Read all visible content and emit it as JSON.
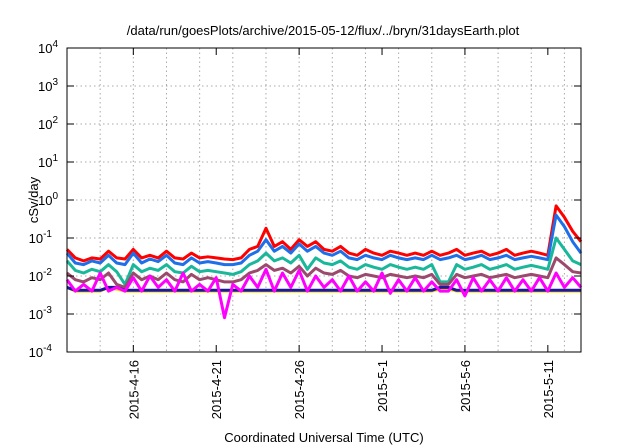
{
  "chart_data": {
    "type": "line",
    "title": "/data/run/goesPlots/archive/2015-05-12/flux/../bryn/31daysEarth.plot",
    "xlabel": "Coordinated Universal Time (UTC)",
    "ylabel": "cSv/day",
    "yscale": "log",
    "ylim": [
      0.0001,
      10000
    ],
    "xlim_days": [
      0,
      31
    ],
    "x_start_date": "2015-4-12",
    "grid": true,
    "legend": "none",
    "x_ticks": [
      {
        "label": "2015-4-16",
        "day": 4
      },
      {
        "label": "2015-4-21",
        "day": 9
      },
      {
        "label": "2015-4-26",
        "day": 14
      },
      {
        "label": "2015-5-1",
        "day": 19
      },
      {
        "label": "2015-5-6",
        "day": 24
      },
      {
        "label": "2015-5-11",
        "day": 29
      }
    ],
    "y_ticks": [
      {
        "base": "10",
        "exp": "-4",
        "value": 0.0001
      },
      {
        "base": "10",
        "exp": "-3",
        "value": 0.001
      },
      {
        "base": "10",
        "exp": "-2",
        "value": 0.01
      },
      {
        "base": "10",
        "exp": "-1",
        "value": 0.1
      },
      {
        "base": "10",
        "exp": "0",
        "value": 1
      },
      {
        "base": "10",
        "exp": "1",
        "value": 10
      },
      {
        "base": "10",
        "exp": "2",
        "value": 100
      },
      {
        "base": "10",
        "exp": "3",
        "value": 1000
      },
      {
        "base": "10",
        "exp": "4",
        "value": 10000
      }
    ],
    "x_days": [
      0,
      0.5,
      1,
      1.5,
      2,
      2.5,
      3,
      3.5,
      4,
      4.5,
      5,
      5.5,
      6,
      6.5,
      7,
      7.5,
      8,
      8.5,
      9,
      9.5,
      10,
      10.5,
      11,
      11.5,
      12,
      12.5,
      13,
      13.5,
      14,
      14.5,
      15,
      15.5,
      16,
      16.5,
      17,
      17.5,
      18,
      18.5,
      19,
      19.5,
      20,
      20.5,
      21,
      21.5,
      22,
      22.5,
      23,
      23.5,
      24,
      24.5,
      25,
      25.5,
      26,
      26.5,
      27,
      27.5,
      28,
      28.5,
      29,
      29.5,
      30,
      30.5,
      31
    ],
    "series": [
      {
        "name": "red",
        "color": "#ff0000",
        "values": [
          0.05,
          0.03,
          0.025,
          0.03,
          0.028,
          0.045,
          0.03,
          0.028,
          0.05,
          0.03,
          0.035,
          0.03,
          0.045,
          0.03,
          0.028,
          0.04,
          0.03,
          0.032,
          0.03,
          0.028,
          0.027,
          0.03,
          0.05,
          0.06,
          0.18,
          0.06,
          0.08,
          0.05,
          0.09,
          0.06,
          0.08,
          0.05,
          0.045,
          0.06,
          0.04,
          0.035,
          0.05,
          0.04,
          0.035,
          0.045,
          0.04,
          0.035,
          0.04,
          0.035,
          0.045,
          0.035,
          0.04,
          0.05,
          0.035,
          0.04,
          0.045,
          0.035,
          0.04,
          0.05,
          0.035,
          0.04,
          0.045,
          0.04,
          0.035,
          0.7,
          0.35,
          0.15,
          0.08
        ]
      },
      {
        "name": "blue",
        "color": "#1e6fe8",
        "values": [
          0.04,
          0.022,
          0.02,
          0.025,
          0.022,
          0.035,
          0.022,
          0.02,
          0.04,
          0.022,
          0.028,
          0.024,
          0.035,
          0.022,
          0.02,
          0.03,
          0.022,
          0.024,
          0.022,
          0.02,
          0.02,
          0.022,
          0.035,
          0.045,
          0.09,
          0.045,
          0.06,
          0.04,
          0.07,
          0.045,
          0.06,
          0.04,
          0.035,
          0.045,
          0.03,
          0.027,
          0.035,
          0.03,
          0.027,
          0.035,
          0.03,
          0.027,
          0.03,
          0.027,
          0.035,
          0.027,
          0.03,
          0.035,
          0.027,
          0.03,
          0.035,
          0.027,
          0.03,
          0.035,
          0.027,
          0.03,
          0.033,
          0.03,
          0.027,
          0.4,
          0.2,
          0.08,
          0.04
        ]
      },
      {
        "name": "teal",
        "color": "#1ab89a",
        "values": [
          0.025,
          0.014,
          0.012,
          0.015,
          0.013,
          0.02,
          0.013,
          0.006,
          0.02,
          0.013,
          0.016,
          0.014,
          0.02,
          0.013,
          0.012,
          0.018,
          0.013,
          0.014,
          0.013,
          0.012,
          0.011,
          0.013,
          0.02,
          0.025,
          0.04,
          0.025,
          0.03,
          0.022,
          0.035,
          0.015,
          0.03,
          0.022,
          0.02,
          0.025,
          0.017,
          0.015,
          0.02,
          0.017,
          0.015,
          0.02,
          0.017,
          0.015,
          0.017,
          0.015,
          0.02,
          0.007,
          0.007,
          0.02,
          0.015,
          0.017,
          0.02,
          0.015,
          0.017,
          0.02,
          0.015,
          0.017,
          0.019,
          0.017,
          0.015,
          0.1,
          0.05,
          0.025,
          0.02
        ]
      },
      {
        "name": "brown",
        "color": "#9b4a6e",
        "values": [
          0.012,
          0.008,
          0.007,
          0.009,
          0.008,
          0.012,
          0.006,
          0.005,
          0.012,
          0.008,
          0.01,
          0.008,
          0.012,
          0.008,
          0.007,
          0.011,
          0.008,
          0.009,
          0.008,
          0.007,
          0.007,
          0.008,
          0.012,
          0.014,
          0.02,
          0.014,
          0.016,
          0.012,
          0.018,
          0.01,
          0.016,
          0.012,
          0.011,
          0.014,
          0.01,
          0.009,
          0.011,
          0.01,
          0.009,
          0.011,
          0.01,
          0.009,
          0.01,
          0.009,
          0.011,
          0.006,
          0.006,
          0.011,
          0.009,
          0.01,
          0.011,
          0.009,
          0.01,
          0.011,
          0.009,
          0.01,
          0.011,
          0.01,
          0.009,
          0.03,
          0.02,
          0.013,
          0.012
        ]
      },
      {
        "name": "yellow",
        "color": "#ffd700",
        "values": [
          0.005,
          0.004,
          0.004,
          0.004,
          0.004,
          0.005,
          0.0045,
          0.004,
          0.004,
          0.004,
          0.004,
          0.004,
          0.004,
          0.004,
          0.004,
          0.004,
          0.004,
          0.004,
          0.004,
          0.004,
          0.004,
          0.004,
          0.004,
          0.004,
          0.004,
          0.004,
          0.004,
          0.004,
          0.004,
          0.004,
          0.004,
          0.004,
          0.004,
          0.004,
          0.004,
          0.004,
          0.004,
          0.004,
          0.004,
          0.004,
          0.004,
          0.004,
          0.004,
          0.004,
          0.004,
          0.0045,
          0.0045,
          0.004,
          0.004,
          0.004,
          0.004,
          0.004,
          0.004,
          0.004,
          0.004,
          0.004,
          0.004,
          0.004,
          0.004,
          0.004,
          0.004,
          0.004,
          0.004
        ]
      },
      {
        "name": "navy",
        "color": "#1a1a9a",
        "values": [
          0.005,
          0.0042,
          0.0042,
          0.0042,
          0.0042,
          0.005,
          0.005,
          0.0042,
          0.0042,
          0.0042,
          0.0042,
          0.0042,
          0.0042,
          0.0042,
          0.0042,
          0.0042,
          0.0042,
          0.0042,
          0.0042,
          0.0042,
          0.0042,
          0.0042,
          0.0042,
          0.0042,
          0.0042,
          0.0042,
          0.0042,
          0.0042,
          0.0042,
          0.0042,
          0.0042,
          0.0042,
          0.0042,
          0.0042,
          0.0042,
          0.0042,
          0.0042,
          0.0042,
          0.0042,
          0.0042,
          0.0042,
          0.0042,
          0.0042,
          0.0042,
          0.0042,
          0.005,
          0.005,
          0.0042,
          0.0042,
          0.0042,
          0.0042,
          0.0042,
          0.0042,
          0.0042,
          0.0042,
          0.0042,
          0.0042,
          0.0042,
          0.0042,
          0.0042,
          0.0042,
          0.0042,
          0.0042
        ]
      },
      {
        "name": "magenta",
        "color": "#ff00ff",
        "values": [
          0.008,
          0.004,
          0.006,
          0.004,
          0.012,
          0.004,
          0.005,
          0.004,
          0.009,
          0.004,
          0.01,
          0.005,
          0.008,
          0.004,
          0.012,
          0.004,
          0.006,
          0.004,
          0.009,
          0.0008,
          0.006,
          0.004,
          0.01,
          0.005,
          0.015,
          0.004,
          0.012,
          0.005,
          0.014,
          0.004,
          0.01,
          0.005,
          0.008,
          0.004,
          0.01,
          0.004,
          0.007,
          0.004,
          0.012,
          0.0035,
          0.008,
          0.004,
          0.009,
          0.004,
          0.007,
          0.004,
          0.004,
          0.008,
          0.003,
          0.009,
          0.004,
          0.008,
          0.004,
          0.009,
          0.004,
          0.008,
          0.004,
          0.009,
          0.004,
          0.012,
          0.005,
          0.009,
          0.005
        ]
      }
    ]
  }
}
